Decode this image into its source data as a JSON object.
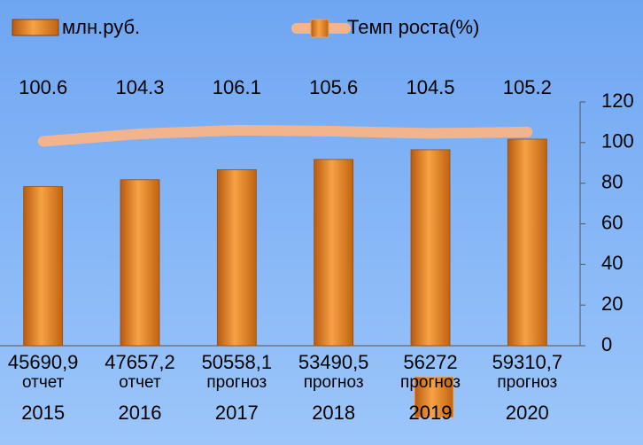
{
  "chart_data": {
    "type": "bar",
    "categories": [
      "2015",
      "2016",
      "2017",
      "2018",
      "2019",
      "2020"
    ],
    "category_notes": [
      "отчет",
      "отчет",
      "прогноз",
      "прогноз",
      "прогноз",
      "прогноз"
    ],
    "ylim": [
      0,
      70000
    ],
    "y2lim": [
      0,
      120
    ],
    "y2ticks": [
      0,
      20,
      40,
      60,
      80,
      100,
      120
    ],
    "series": [
      {
        "name": "млн.руб.",
        "type": "bar",
        "color": "#e8821e",
        "values": [
          45690.9,
          47657.2,
          50558.1,
          53490.5,
          56272,
          59310.7
        ],
        "value_labels": [
          "45690,9",
          "47657,2",
          "50558,1",
          "53490,5",
          "56272",
          "59310,7"
        ]
      },
      {
        "name": "Темп роста(%)",
        "type": "line",
        "axis": "y2",
        "color": "#f2b48c",
        "values": [
          100.6,
          104.3,
          106.1,
          105.6,
          104.5,
          105.2
        ]
      }
    ]
  }
}
